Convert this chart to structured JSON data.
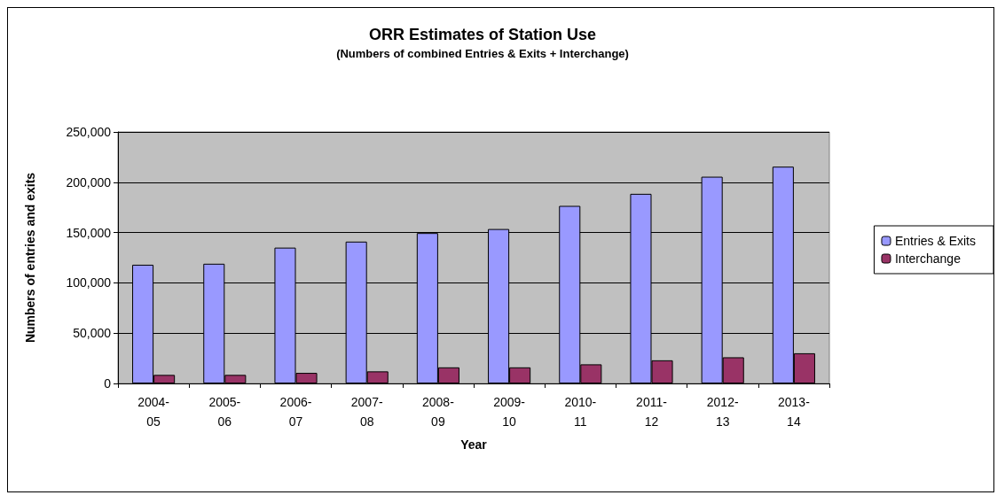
{
  "chart_data": {
    "type": "bar",
    "title": "ORR Estimates of Station Use",
    "subtitle": "(Numbers of combined Entries & Exits + Interchange)",
    "xlabel": "Year",
    "ylabel": "Numbers of entries and exits",
    "categories": [
      "2004-\n05",
      "2005-\n06",
      "2006-\n07",
      "2007-\n08",
      "2008-\n09",
      "2009-\n10",
      "2010-\n11",
      "2011-\n12",
      "2012-\n13",
      "2013-\n14"
    ],
    "series": [
      {
        "name": "Entries & Exits",
        "color": "#9999ff",
        "values": [
          118000,
          119000,
          135000,
          141000,
          149500,
          153500,
          176500,
          188500,
          205500,
          215500
        ]
      },
      {
        "name": "Interchange",
        "color": "#993366",
        "values": [
          8500,
          8500,
          10500,
          12000,
          16000,
          16000,
          19000,
          23000,
          26000,
          30000
        ]
      }
    ],
    "ylim": [
      0,
      250000
    ],
    "yticks": [
      {
        "value": 0,
        "label": "0"
      },
      {
        "value": 50000,
        "label": "50,000"
      },
      {
        "value": 100000,
        "label": "100,000"
      },
      {
        "value": 150000,
        "label": "150,000"
      },
      {
        "value": 200000,
        "label": "200,000"
      },
      {
        "value": 250000,
        "label": "250,000"
      }
    ],
    "grid": "y",
    "legend": "right"
  }
}
